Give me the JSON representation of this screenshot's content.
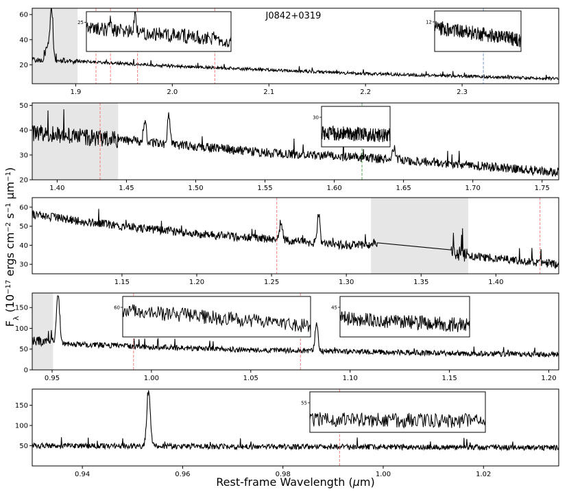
{
  "figure": {
    "object_name": "J0842+0319",
    "xlabel": "Rest-frame Wavelength (μm)",
    "ylabel": "Fλ (10⁻¹⁷ ergs cm⁻² s⁻¹ μm⁻¹)",
    "colors": {
      "spectrum": "#000000",
      "shade": "#e6e6e6",
      "red_line": "#f08080",
      "blue_line": "#7a9cc6",
      "green_line": "#5aa85a"
    }
  },
  "chart_data": [
    {
      "type": "line",
      "xlim": [
        1.855,
        2.4
      ],
      "ylim": [
        5,
        65
      ],
      "xticks": [
        1.9,
        2.0,
        2.1,
        2.2,
        2.3
      ],
      "xtick_labels": [
        "1.9",
        "2.0",
        "2.1",
        "2.2",
        "2.3"
      ],
      "yticks": [
        20,
        40,
        60
      ],
      "ytick_labels": [
        "20",
        "40",
        "60"
      ],
      "shaded": [
        [
          1.855,
          1.902
        ]
      ],
      "vlines": [
        {
          "x": 1.921,
          "color": "red"
        },
        {
          "x": 1.936,
          "color": "red"
        },
        {
          "x": 1.964,
          "color": "red"
        },
        {
          "x": 2.044,
          "color": "red"
        },
        {
          "x": 2.322,
          "color": "blue"
        }
      ],
      "continuum": {
        "x": [
          1.855,
          1.9,
          2.0,
          2.1,
          2.2,
          2.3,
          2.4
        ],
        "y": [
          24,
          23,
          19,
          16,
          13,
          11,
          9
        ]
      },
      "lines": [
        {
          "center": 1.875,
          "peak": 40,
          "width": 0.0014
        },
        {
          "center": 1.871,
          "peak": 12,
          "width": 0.002
        }
      ],
      "insets": [
        {
          "xlim": [
            1.91,
            2.06
          ],
          "ylabel_tick": "25",
          "continuum": [
            29,
            22
          ],
          "lines": [
            {
              "center": 1.9605,
              "peak": 12,
              "width": 0.0008
            },
            {
              "center": 1.935,
              "peak": 6,
              "width": 0.0008
            }
          ]
        },
        {
          "xlim": [
            2.27,
            2.355
          ],
          "ylabel_tick": "12",
          "continuum": [
            13.6,
            10.5
          ],
          "lines": []
        }
      ]
    },
    {
      "type": "line",
      "xlim": [
        1.382,
        1.762
      ],
      "ylim": [
        20,
        51
      ],
      "xticks": [
        1.4,
        1.45,
        1.5,
        1.55,
        1.6,
        1.65,
        1.7,
        1.75
      ],
      "xtick_labels": [
        "1.40",
        "1.45",
        "1.50",
        "1.55",
        "1.60",
        "1.65",
        "1.70",
        "1.75"
      ],
      "yticks": [
        20,
        30,
        40,
        50
      ],
      "ytick_labels": [
        "20",
        "30",
        "40",
        "50"
      ],
      "shaded": [
        [
          1.382,
          1.444
        ]
      ],
      "vlines": [
        {
          "x": 1.431,
          "color": "red"
        },
        {
          "x": 1.62,
          "color": "green"
        }
      ],
      "continuum": {
        "x": [
          1.382,
          1.45,
          1.55,
          1.65,
          1.762
        ],
        "y": [
          39,
          36,
          31,
          28,
          23
        ]
      },
      "lines": [
        {
          "center": 1.4805,
          "peak": 12,
          "width": 0.0009
        },
        {
          "center": 1.4635,
          "peak": 8,
          "width": 0.0009
        },
        {
          "center": 1.643,
          "peak": 5,
          "width": 0.001
        }
      ],
      "insets": [
        {
          "xlim": [
            1.595,
            1.645
          ],
          "ylabel_tick": "30",
          "continuum": [
            30.5,
            29.5
          ],
          "lines": []
        }
      ]
    },
    {
      "type": "line",
      "xlim": [
        1.09,
        1.442
      ],
      "ylim": [
        25,
        65
      ],
      "xticks": [
        1.15,
        1.2,
        1.25,
        1.3,
        1.35,
        1.4
      ],
      "xtick_labels": [
        "1.15",
        "1.20",
        "1.25",
        "1.30",
        "1.35",
        "1.40"
      ],
      "yticks": [
        30,
        40,
        50,
        60
      ],
      "ytick_labels": [
        "30",
        "40",
        "50",
        "60"
      ],
      "shaded": [
        [
          1.3165,
          1.3815
        ]
      ],
      "vlines": [
        {
          "x": 1.2535,
          "color": "red"
        },
        {
          "x": 1.4295,
          "color": "red"
        }
      ],
      "continuum": {
        "x": [
          1.09,
          1.15,
          1.2,
          1.25,
          1.3,
          1.32,
          1.37,
          1.4,
          1.442
        ],
        "y": [
          56,
          50,
          46,
          43,
          40,
          40,
          36,
          33,
          30
        ]
      },
      "lines": [
        {
          "center": 1.2815,
          "peak": 16,
          "width": 0.0008
        },
        {
          "center": 1.2565,
          "peak": 9,
          "width": 0.001
        }
      ],
      "gap": [
        1.321,
        1.37
      ]
    },
    {
      "type": "line",
      "xlim": [
        0.94,
        1.205
      ],
      "ylim": [
        0,
        185
      ],
      "xticks": [
        0.95,
        1.0,
        1.05,
        1.1,
        1.15,
        1.2
      ],
      "xtick_labels": [
        "0.95",
        "1.00",
        "1.05",
        "1.10",
        "1.15",
        "1.20"
      ],
      "yticks": [
        0,
        50,
        100,
        150
      ],
      "ytick_labels": [
        "0",
        "50",
        "100",
        "150"
      ],
      "shaded": [
        [
          0.94,
          0.9505
        ]
      ],
      "vlines": [
        {
          "x": 0.991,
          "color": "red"
        },
        {
          "x": 1.075,
          "color": "red"
        }
      ],
      "continuum": {
        "x": [
          0.94,
          0.96,
          1.0,
          1.05,
          1.1,
          1.15,
          1.205
        ],
        "y": [
          70,
          62,
          55,
          48,
          44,
          40,
          37
        ]
      },
      "lines": [
        {
          "center": 0.953,
          "peak": 115,
          "width": 0.0008
        },
        {
          "center": 1.0831,
          "peak": 70,
          "width": 0.0007
        }
      ],
      "insets": [
        {
          "xlim": [
            0.9835,
            1.078
          ],
          "ylabel_tick": "60",
          "continuum": [
            64,
            44
          ],
          "lines": []
        },
        {
          "xlim": [
            1.094,
            1.159
          ],
          "ylabel_tick": "45",
          "continuum": [
            46,
            41
          ],
          "lines": []
        }
      ]
    },
    {
      "type": "line",
      "xlim": [
        0.93,
        1.035
      ],
      "ylim": [
        0,
        190
      ],
      "xticks": [
        0.94,
        0.96,
        0.98,
        1.0,
        1.02
      ],
      "xtick_labels": [
        "0.94",
        "0.96",
        "0.98",
        "1.00",
        "1.02"
      ],
      "yticks": [
        50,
        100,
        150
      ],
      "ytick_labels": [
        "50",
        "100",
        "150"
      ],
      "shaded": [],
      "vlines": [
        {
          "x": 0.9913,
          "color": "red"
        }
      ],
      "continuum": {
        "x": [
          0.93,
          0.95,
          0.97,
          1.0,
          1.035
        ],
        "y": [
          50,
          49,
          48,
          47,
          45
        ]
      },
      "lines": [
        {
          "center": 0.9532,
          "peak": 135,
          "width": 0.00035
        }
      ],
      "insets": [
        {
          "xlim": [
            0.986,
            1.0235
          ],
          "ylabel_tick": "55",
          "continuum": [
            55,
            54
          ],
          "lines": []
        }
      ]
    }
  ]
}
